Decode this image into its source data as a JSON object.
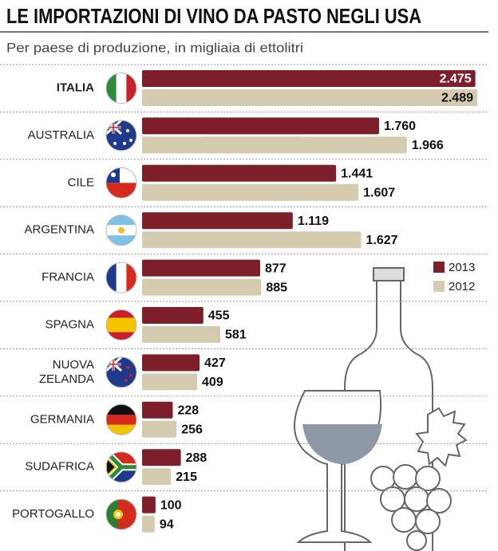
{
  "chart_data": {
    "type": "hbar",
    "title": "LE IMPORTAZIONI DI VINO DA PASTO NEGLI USA",
    "subtitle": "Per paese di produzione, in migliaia di ettolitri",
    "categories": [
      "ITALIA",
      "AUSTRALIA",
      "CILE",
      "ARGENTINA",
      "FRANCIA",
      "SPAGNA",
      "NUOVA ZELANDA",
      "GERMANIA",
      "SUDAFRICA",
      "PORTOGALLO"
    ],
    "series": [
      {
        "name": "2013",
        "color": "#7d1f2b",
        "values": [
          2475,
          1760,
          1441,
          1119,
          877,
          455,
          427,
          228,
          288,
          100
        ],
        "value_labels": [
          "2.475",
          "1.760",
          "1.441",
          "1.119",
          "877",
          "455",
          "427",
          "228",
          "288",
          "100"
        ]
      },
      {
        "name": "2012",
        "color": "#d5cbb0",
        "values": [
          2489,
          1966,
          1607,
          1627,
          885,
          581,
          409,
          256,
          215,
          94
        ],
        "value_labels": [
          "2.489",
          "1.966",
          "1.607",
          "1.627",
          "885",
          "581",
          "409",
          "256",
          "215",
          "94"
        ]
      }
    ]
  }
}
